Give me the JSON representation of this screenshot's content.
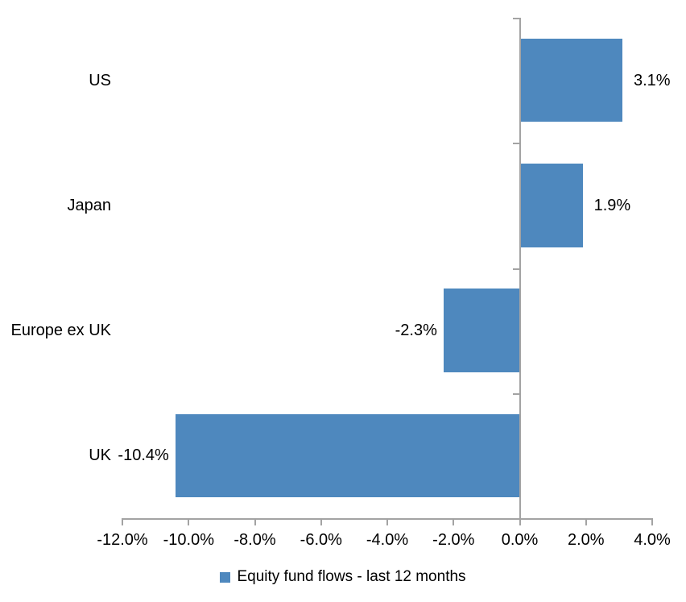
{
  "chart_data": {
    "type": "bar",
    "orientation": "horizontal",
    "title": "",
    "categories": [
      "US",
      "Japan",
      "Europe ex UK",
      "UK"
    ],
    "values": [
      3.1,
      1.9,
      -2.3,
      -10.4
    ],
    "data_labels": [
      "3.1%",
      "1.9%",
      "-2.3%",
      "-10.4%"
    ],
    "series_name": "Equity fund flows - last 12 months",
    "xlabel": "",
    "ylabel": "",
    "xlim": [
      -12,
      4
    ],
    "x_tick_step": 2,
    "x_tick_labels": [
      "-12.0%",
      "-10.0%",
      "-8.0%",
      "-6.0%",
      "-4.0%",
      "-2.0%",
      "0.0%",
      "2.0%",
      "4.0%"
    ],
    "grid": false,
    "legend_position": "bottom",
    "bar_color": "#4E88BE",
    "axis_color": "#A3A3A3",
    "text_color": "#000000",
    "background": "#FFFFFF"
  }
}
